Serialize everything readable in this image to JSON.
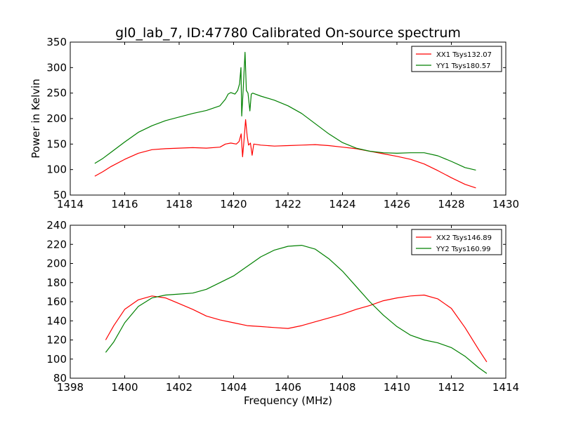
{
  "figure": {
    "background": "#ffffff"
  },
  "chart_data": [
    {
      "type": "line",
      "title": "gl0_lab_7, ID:47780 Calibrated On-source spectrum",
      "xlabel": "",
      "ylabel": "Power in Kelvin",
      "xlim": [
        1414,
        1430
      ],
      "ylim": [
        50,
        350
      ],
      "xticks": [
        1414,
        1416,
        1418,
        1420,
        1422,
        1424,
        1426,
        1428,
        1430
      ],
      "yticks": [
        50,
        100,
        150,
        200,
        250,
        300,
        350
      ],
      "grid": false,
      "legend_position": "top-right",
      "series": [
        {
          "name": "XX1 Tsys132.07",
          "color": "#ff0000",
          "points": [
            [
              1414.9,
              87
            ],
            [
              1415.2,
              96
            ],
            [
              1415.5,
              106
            ],
            [
              1416.0,
              120
            ],
            [
              1416.5,
              132
            ],
            [
              1417.0,
              139
            ],
            [
              1417.5,
              141
            ],
            [
              1418.0,
              142
            ],
            [
              1418.5,
              143
            ],
            [
              1419.0,
              142
            ],
            [
              1419.5,
              144
            ],
            [
              1419.7,
              150
            ],
            [
              1419.9,
              152
            ],
            [
              1420.1,
              150
            ],
            [
              1420.2,
              155
            ],
            [
              1420.28,
              170
            ],
            [
              1420.33,
              125
            ],
            [
              1420.38,
              155
            ],
            [
              1420.44,
              198
            ],
            [
              1420.5,
              165
            ],
            [
              1420.55,
              148
            ],
            [
              1420.62,
              152
            ],
            [
              1420.68,
              128
            ],
            [
              1420.74,
              150
            ],
            [
              1421.0,
              148
            ],
            [
              1421.5,
              146
            ],
            [
              1422.0,
              147
            ],
            [
              1422.5,
              148
            ],
            [
              1423.0,
              149
            ],
            [
              1423.5,
              147
            ],
            [
              1424.0,
              144
            ],
            [
              1424.5,
              141
            ],
            [
              1425.0,
              136
            ],
            [
              1425.5,
              131
            ],
            [
              1426.0,
              126
            ],
            [
              1426.5,
              120
            ],
            [
              1427.0,
              111
            ],
            [
              1427.5,
              98
            ],
            [
              1428.0,
              84
            ],
            [
              1428.5,
              71
            ],
            [
              1428.9,
              64
            ]
          ]
        },
        {
          "name": "YY1 Tsys180.57",
          "color": "#008000",
          "points": [
            [
              1414.9,
              112
            ],
            [
              1415.2,
              122
            ],
            [
              1415.5,
              134
            ],
            [
              1416.0,
              154
            ],
            [
              1416.5,
              173
            ],
            [
              1417.0,
              186
            ],
            [
              1417.5,
              196
            ],
            [
              1418.0,
              203
            ],
            [
              1418.5,
              210
            ],
            [
              1419.0,
              216
            ],
            [
              1419.5,
              225
            ],
            [
              1419.7,
              238
            ],
            [
              1419.8,
              248
            ],
            [
              1419.9,
              251
            ],
            [
              1420.05,
              248
            ],
            [
              1420.15,
              255
            ],
            [
              1420.22,
              268
            ],
            [
              1420.27,
              300
            ],
            [
              1420.3,
              205
            ],
            [
              1420.35,
              255
            ],
            [
              1420.42,
              330
            ],
            [
              1420.47,
              255
            ],
            [
              1420.53,
              250
            ],
            [
              1420.6,
              215
            ],
            [
              1420.65,
              248
            ],
            [
              1420.7,
              250
            ],
            [
              1421.0,
              244
            ],
            [
              1421.5,
              236
            ],
            [
              1422.0,
              225
            ],
            [
              1422.5,
              210
            ],
            [
              1423.0,
              190
            ],
            [
              1423.5,
              170
            ],
            [
              1424.0,
              153
            ],
            [
              1424.5,
              142
            ],
            [
              1425.0,
              136
            ],
            [
              1425.5,
              133
            ],
            [
              1426.0,
              132
            ],
            [
              1426.5,
              133
            ],
            [
              1427.0,
              133
            ],
            [
              1427.5,
              127
            ],
            [
              1428.0,
              116
            ],
            [
              1428.5,
              104
            ],
            [
              1428.9,
              99
            ]
          ]
        }
      ]
    },
    {
      "type": "line",
      "title": "",
      "xlabel": "Frequency (MHz)",
      "ylabel": "",
      "xlim": [
        1398,
        1414
      ],
      "ylim": [
        80,
        240
      ],
      "xticks": [
        1398,
        1400,
        1402,
        1404,
        1406,
        1408,
        1410,
        1412,
        1414
      ],
      "yticks": [
        80,
        100,
        120,
        140,
        160,
        180,
        200,
        220,
        240
      ],
      "grid": false,
      "legend_position": "top-right",
      "series": [
        {
          "name": "XX2 Tsys146.89",
          "color": "#ff0000",
          "points": [
            [
              1399.3,
              120
            ],
            [
              1399.6,
              135
            ],
            [
              1400.0,
              152
            ],
            [
              1400.5,
              162
            ],
            [
              1401.0,
              166
            ],
            [
              1401.5,
              164
            ],
            [
              1402.0,
              158
            ],
            [
              1402.5,
              152
            ],
            [
              1403.0,
              145
            ],
            [
              1403.5,
              141
            ],
            [
              1404.0,
              138
            ],
            [
              1404.5,
              135
            ],
            [
              1405.0,
              134
            ],
            [
              1405.5,
              133
            ],
            [
              1406.0,
              132
            ],
            [
              1406.5,
              135
            ],
            [
              1407.0,
              139
            ],
            [
              1407.5,
              143
            ],
            [
              1408.0,
              147
            ],
            [
              1408.5,
              152
            ],
            [
              1409.0,
              156
            ],
            [
              1409.5,
              161
            ],
            [
              1410.0,
              164
            ],
            [
              1410.5,
              166
            ],
            [
              1411.0,
              167
            ],
            [
              1411.5,
              163
            ],
            [
              1412.0,
              153
            ],
            [
              1412.5,
              133
            ],
            [
              1413.0,
              110
            ],
            [
              1413.3,
              97
            ]
          ]
        },
        {
          "name": "YY2 Tsys160.99",
          "color": "#008000",
          "points": [
            [
              1399.3,
              107
            ],
            [
              1399.6,
              118
            ],
            [
              1400.0,
              138
            ],
            [
              1400.5,
              155
            ],
            [
              1401.0,
              164
            ],
            [
              1401.5,
              167
            ],
            [
              1402.0,
              168
            ],
            [
              1402.5,
              169
            ],
            [
              1403.0,
              173
            ],
            [
              1403.5,
              180
            ],
            [
              1404.0,
              187
            ],
            [
              1404.5,
              197
            ],
            [
              1405.0,
              207
            ],
            [
              1405.5,
              214
            ],
            [
              1406.0,
              218
            ],
            [
              1406.5,
              219
            ],
            [
              1407.0,
              215
            ],
            [
              1407.5,
              205
            ],
            [
              1408.0,
              192
            ],
            [
              1408.5,
              176
            ],
            [
              1409.0,
              160
            ],
            [
              1409.5,
              146
            ],
            [
              1410.0,
              134
            ],
            [
              1410.5,
              125
            ],
            [
              1411.0,
              120
            ],
            [
              1411.5,
              117
            ],
            [
              1412.0,
              112
            ],
            [
              1412.5,
              103
            ],
            [
              1413.0,
              91
            ],
            [
              1413.3,
              85
            ]
          ]
        }
      ]
    }
  ]
}
